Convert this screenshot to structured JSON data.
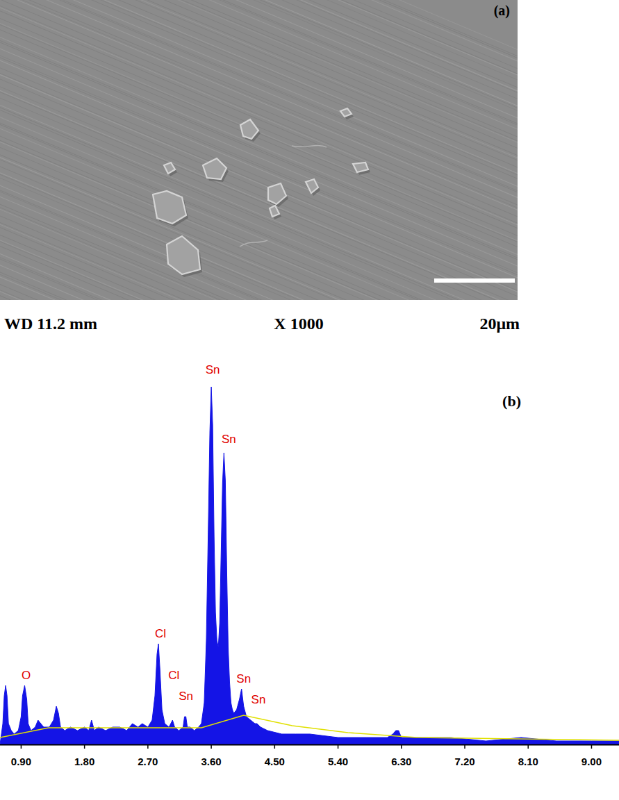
{
  "micrograph": {
    "label": "(a)",
    "working_distance": "WD 11.2 mm",
    "magnification": "X 1000",
    "scale_bar": "20μm"
  },
  "chart_data": {
    "type": "area",
    "title": "(b)",
    "tick_labels": "x",
    "xlim": [
      0.6,
      9.39
    ],
    "ylim": [
      0,
      110
    ],
    "xticks": [
      {
        "value": 0.9,
        "label": "0.90"
      },
      {
        "value": 1.8,
        "label": "1.80"
      },
      {
        "value": 2.7,
        "label": "2.70"
      },
      {
        "value": 3.6,
        "label": "3.60"
      },
      {
        "value": 4.5,
        "label": "4.50"
      },
      {
        "value": 5.4,
        "label": "5.40"
      },
      {
        "value": 6.3,
        "label": "6.30"
      },
      {
        "value": 7.2,
        "label": "7.20"
      },
      {
        "value": 8.1,
        "label": "8.10"
      },
      {
        "value": 9.0,
        "label": "9.00"
      }
    ],
    "x": [
      0.6,
      0.64,
      0.66,
      0.68,
      0.7,
      0.72,
      0.76,
      0.8,
      0.86,
      0.9,
      0.92,
      0.95,
      0.98,
      1.0,
      1.04,
      1.1,
      1.14,
      1.18,
      1.22,
      1.3,
      1.36,
      1.4,
      1.43,
      1.46,
      1.52,
      1.6,
      1.7,
      1.8,
      1.86,
      1.9,
      1.94,
      2.0,
      2.1,
      2.2,
      2.3,
      2.4,
      2.48,
      2.56,
      2.62,
      2.7,
      2.76,
      2.8,
      2.83,
      2.85,
      2.87,
      2.9,
      2.94,
      3.0,
      3.05,
      3.08,
      3.14,
      3.2,
      3.22,
      3.24,
      3.26,
      3.3,
      3.36,
      3.42,
      3.46,
      3.5,
      3.53,
      3.56,
      3.58,
      3.6,
      3.62,
      3.64,
      3.66,
      3.68,
      3.7,
      3.72,
      3.74,
      3.76,
      3.78,
      3.8,
      3.82,
      3.84,
      3.86,
      3.88,
      3.9,
      3.92,
      3.96,
      4.0,
      4.03,
      4.06,
      4.1,
      4.16,
      4.22,
      4.25,
      4.3,
      4.4,
      4.6,
      4.8,
      5.0,
      5.4,
      5.8,
      6.1,
      6.18,
      6.22,
      6.26,
      6.3,
      6.6,
      7.0,
      7.5,
      8.0,
      8.5,
      9.0,
      9.39
    ],
    "series": [
      {
        "color": "#1414e6",
        "values": [
          0,
          6,
          14,
          17,
          14,
          6,
          4,
          3,
          4,
          8,
          14,
          17,
          13,
          6,
          4,
          5,
          7,
          6,
          5,
          5,
          7,
          11,
          9,
          5,
          4,
          5,
          4,
          5,
          4,
          7,
          4,
          5,
          4,
          5,
          5,
          4,
          6,
          5,
          6,
          5,
          7,
          14,
          26,
          29,
          22,
          10,
          6,
          5,
          7,
          5,
          4,
          5,
          8,
          8,
          5,
          5,
          4,
          5,
          6,
          12,
          30,
          65,
          90,
          103,
          92,
          60,
          38,
          30,
          28,
          35,
          55,
          75,
          84,
          76,
          50,
          28,
          18,
          12,
          10,
          9,
          10,
          13,
          16,
          11,
          8,
          7,
          6,
          6,
          5,
          4,
          3,
          3,
          3,
          2,
          2,
          2,
          3,
          4,
          4,
          2,
          2,
          2,
          1,
          2,
          1,
          1,
          1
        ]
      },
      {
        "type": "line",
        "color": "#e0e000",
        "x": [
          0.6,
          1.29,
          3.46,
          4.06,
          4.75,
          5.54,
          6.52,
          9.39
        ],
        "values": [
          2,
          4.8,
          4.8,
          8.4,
          5.4,
          3.4,
          2,
          1.2
        ]
      }
    ],
    "annotations": [
      {
        "text": "O",
        "x": 0.97,
        "y": 20
      },
      {
        "text": "Cl",
        "x": 2.88,
        "y": 32
      },
      {
        "text": "Cl",
        "x": 3.07,
        "y": 20
      },
      {
        "text": "Sn",
        "x": 3.24,
        "y": 14
      },
      {
        "text": "Sn",
        "x": 3.62,
        "y": 108
      },
      {
        "text": "Sn",
        "x": 3.85,
        "y": 88
      },
      {
        "text": "Sn",
        "x": 4.06,
        "y": 19
      },
      {
        "text": "Sn",
        "x": 4.27,
        "y": 13
      }
    ]
  }
}
